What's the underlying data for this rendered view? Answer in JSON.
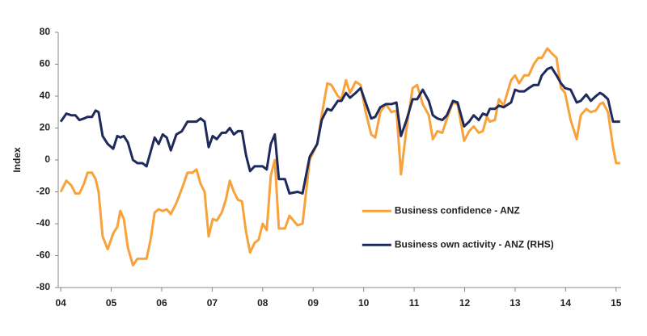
{
  "chart_data": {
    "type": "line",
    "y_label": "Index",
    "x": [
      2004.0,
      2004.11,
      2004.21,
      2004.29,
      2004.37,
      2004.46,
      2004.53,
      2004.62,
      2004.69,
      2004.75,
      2004.83,
      2004.93,
      2005.04,
      2005.12,
      2005.18,
      2005.25,
      2005.33,
      2005.43,
      2005.52,
      2005.62,
      2005.7,
      2005.78,
      2005.86,
      2005.94,
      2006.02,
      2006.1,
      2006.18,
      2006.29,
      2006.4,
      2006.51,
      2006.61,
      2006.69,
      2006.77,
      2006.85,
      2006.93,
      2007.01,
      2007.09,
      2007.19,
      2007.27,
      2007.35,
      2007.43,
      2007.51,
      2007.59,
      2007.67,
      2007.75,
      2007.84,
      2007.92,
      2008.0,
      2008.08,
      2008.16,
      2008.24,
      2008.32,
      2008.44,
      2008.53,
      2008.69,
      2008.79,
      2008.93,
      2009.08,
      2009.17,
      2009.28,
      2009.36,
      2009.49,
      2009.56,
      2009.65,
      2009.73,
      2009.84,
      2009.94,
      2010.04,
      2010.15,
      2010.23,
      2010.33,
      2010.44,
      2010.55,
      2010.65,
      2010.74,
      2010.85,
      2010.97,
      2011.06,
      2011.17,
      2011.29,
      2011.37,
      2011.46,
      2011.56,
      2011.65,
      2011.77,
      2011.86,
      2011.99,
      2012.09,
      2012.18,
      2012.28,
      2012.36,
      2012.44,
      2012.5,
      2012.6,
      2012.68,
      2012.77,
      2012.92,
      2013.0,
      2013.08,
      2013.18,
      2013.27,
      2013.37,
      2013.46,
      2013.53,
      2013.64,
      2013.72,
      2013.82,
      2013.91,
      2013.99,
      2014.1,
      2014.22,
      2014.3,
      2014.41,
      2014.5,
      2014.6,
      2014.68,
      2014.74,
      2014.84,
      2014.94,
      2015.0,
      2015.08
    ],
    "series": [
      {
        "name": "Business confidence - ANZ",
        "color": "#f7a23b",
        "values": [
          -20,
          -13,
          -16,
          -21,
          -21,
          -15,
          -8,
          -8,
          -12,
          -20,
          -48,
          -56,
          -46,
          -42,
          -32,
          -37,
          -55,
          -66,
          -62,
          -62,
          -62,
          -50,
          -33,
          -31,
          -32,
          -31,
          -34,
          -27,
          -18,
          -8,
          -8,
          -6,
          -15,
          -20,
          -48,
          -37,
          -38,
          -33,
          -25,
          -13,
          -20,
          -25,
          -26,
          -45,
          -58,
          -52,
          -50,
          -40,
          -44,
          -10,
          0,
          -43,
          -43,
          -35,
          -41,
          -40,
          0,
          10,
          28,
          48,
          47,
          40,
          38,
          50,
          42,
          49,
          47,
          30,
          16,
          14,
          30,
          35,
          30,
          31,
          -9,
          20,
          45,
          47,
          35,
          28,
          13,
          18,
          17,
          26,
          36,
          35,
          12,
          18,
          21,
          17,
          18,
          27,
          24,
          25,
          38,
          34,
          50,
          53,
          48,
          53,
          53,
          60,
          64,
          64,
          70,
          67,
          64,
          45,
          42,
          25,
          13,
          28,
          32,
          30,
          31,
          35,
          36,
          30,
          8,
          -2,
          -2
        ]
      },
      {
        "name": "Business own activity - ANZ (RHS)",
        "color": "#1f2a5c",
        "values": [
          24,
          29,
          28,
          28,
          25,
          26,
          27,
          27,
          31,
          30,
          15,
          10,
          7,
          15,
          14,
          15,
          11,
          0,
          -2,
          -2,
          -4,
          5,
          14,
          10,
          16,
          14,
          6,
          16,
          18,
          24,
          24,
          24,
          26,
          24,
          8,
          15,
          13,
          17,
          17,
          20,
          16,
          18,
          18,
          3,
          -7,
          -4,
          -4,
          -4,
          -6,
          10,
          16,
          -12,
          -12,
          -21,
          -20,
          -21,
          2,
          10,
          25,
          32,
          31,
          37,
          37,
          42,
          39,
          42,
          45,
          36,
          26,
          27,
          33,
          35,
          35,
          36,
          15,
          25,
          38,
          38,
          44,
          37,
          28,
          26,
          25,
          28,
          37,
          36,
          21,
          24,
          28,
          25,
          29,
          28,
          32,
          32,
          34,
          33,
          36,
          44,
          43,
          43,
          45,
          47,
          47,
          53,
          57,
          58,
          53,
          48,
          45,
          44,
          36,
          37,
          41,
          37,
          40,
          42,
          41,
          38,
          24,
          24,
          24
        ]
      }
    ],
    "xlim": [
      2003.95,
      2015.1
    ],
    "xticks": [
      {
        "value": 2004,
        "label": "04"
      },
      {
        "value": 2005,
        "label": "05"
      },
      {
        "value": 2006,
        "label": "06"
      },
      {
        "value": 2007,
        "label": "07"
      },
      {
        "value": 2008,
        "label": "08"
      },
      {
        "value": 2009,
        "label": "09"
      },
      {
        "value": 2010,
        "label": "10"
      },
      {
        "value": 2011,
        "label": "11"
      },
      {
        "value": 2012,
        "label": "12"
      },
      {
        "value": 2013,
        "label": "13"
      },
      {
        "value": 2014,
        "label": "14"
      },
      {
        "value": 2015,
        "label": "15"
      }
    ],
    "ylim": [
      -80,
      80
    ],
    "yticks": [
      -80,
      -60,
      -40,
      -20,
      0,
      20,
      40,
      60,
      80
    ],
    "grid": false,
    "legend": "lower right"
  }
}
